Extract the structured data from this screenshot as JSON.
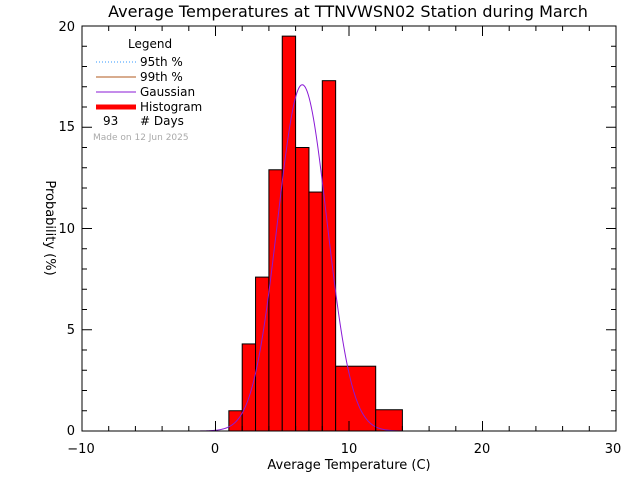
{
  "chart_data": {
    "type": "bar",
    "title": "Average Temperatures at TTNVWSN02 Station during March",
    "xlabel": "Average Temperature (C)",
    "ylabel": "Probability (%)",
    "xlim": [
      -10,
      30
    ],
    "ylim": [
      0,
      20
    ],
    "x_ticks": [
      "−10",
      "0",
      "10",
      "20",
      "30"
    ],
    "y_ticks": [
      "0",
      "5",
      "10",
      "15",
      "20"
    ],
    "grid": false,
    "legend_position": "top-left",
    "legend": {
      "title": "Legend",
      "entries": [
        {
          "label": "95th %",
          "color": "#3399ff",
          "style": "dotted"
        },
        {
          "label": "99th %",
          "color": "#b05a1e",
          "style": "solid"
        },
        {
          "label": "Gaussian",
          "color": "#8a1ad6",
          "style": "solid"
        },
        {
          "label": "Histogram",
          "color": "#ff0000",
          "style": "thick"
        }
      ],
      "days_count": "93",
      "days_label": "# Days"
    },
    "made_on": "Made on 12 Jun 2025",
    "histogram": {
      "color": "#ff0000",
      "bins": [
        {
          "x0": 1,
          "x1": 2,
          "value": 1.0
        },
        {
          "x0": 2,
          "x1": 3,
          "value": 4.3
        },
        {
          "x0": 3,
          "x1": 4,
          "value": 7.6
        },
        {
          "x0": 4,
          "x1": 5,
          "value": 12.9
        },
        {
          "x0": 5,
          "x1": 6,
          "value": 19.5
        },
        {
          "x0": 6,
          "x1": 7,
          "value": 14.0
        },
        {
          "x0": 7,
          "x1": 8,
          "value": 11.8
        },
        {
          "x0": 8,
          "x1": 9,
          "value": 17.3
        },
        {
          "x0": 9,
          "x1": 12,
          "value": 3.2
        },
        {
          "x0": 12,
          "x1": 14,
          "value": 1.05
        }
      ]
    },
    "gaussian": {
      "color": "#8a1ad6",
      "mean": 6.5,
      "sigma": 1.85,
      "peak": 17.1,
      "x_range": [
        -1.5,
        14
      ]
    }
  }
}
